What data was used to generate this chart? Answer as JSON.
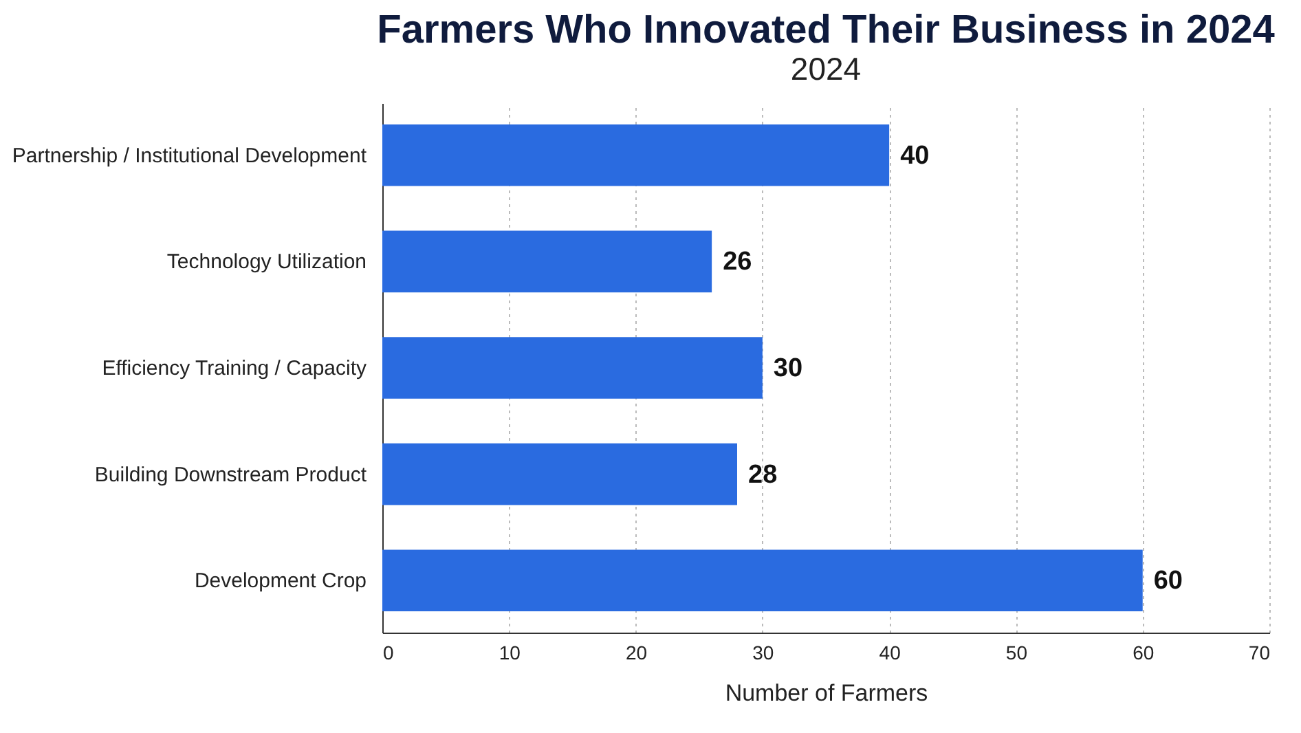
{
  "chart_data": {
    "type": "bar",
    "orientation": "horizontal",
    "title": "Farmers Who Innovated Their Business in 2024",
    "subtitle": "2024",
    "xlabel": "Number of Farmers",
    "categories": [
      "Partnership / Institutional Development",
      "Technology Utilization",
      "Efficiency Training / Capacity",
      "Building Downstream Product",
      "Development Crop"
    ],
    "values": [
      40,
      26,
      30,
      28,
      60
    ],
    "color": "#2a6be0",
    "xlim": [
      0,
      70
    ],
    "xticks": [
      0,
      10,
      20,
      30,
      40,
      50,
      60,
      70
    ],
    "grid": "x",
    "data_labels": true
  }
}
